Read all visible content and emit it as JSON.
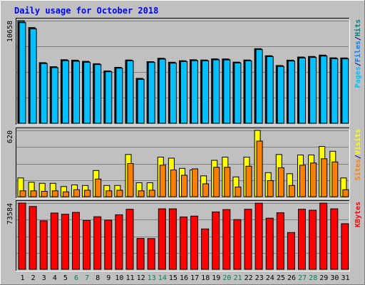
{
  "chart_data": {
    "type": "bar",
    "title": "Daily usage for October 2018",
    "categories": [
      "1",
      "2",
      "3",
      "4",
      "5",
      "6",
      "7",
      "8",
      "9",
      "10",
      "11",
      "12",
      "13",
      "14",
      "15",
      "16",
      "17",
      "18",
      "19",
      "20",
      "21",
      "22",
      "23",
      "24",
      "25",
      "26",
      "27",
      "28",
      "29",
      "30",
      "31"
    ],
    "weekend_days": [
      "6",
      "7",
      "13",
      "14",
      "20",
      "21",
      "27",
      "28"
    ],
    "panels": [
      {
        "id": "hits",
        "ymax_label": "10658",
        "ymax": 10658,
        "legend": [
          {
            "text": "Pages",
            "color": "#00c0ff"
          },
          {
            "text": "/",
            "color": "#000080"
          },
          {
            "text": "Files",
            "color": "#0080ff"
          },
          {
            "text": "/",
            "color": "#000080"
          },
          {
            "text": "Hits",
            "color": "#008080"
          }
        ],
        "series": [
          {
            "name": "Hits",
            "color": "#008080",
            "values": [
              10658,
              9950,
              6300,
              5880,
              6600,
              6560,
              6430,
              6190,
              5440,
              5810,
              6570,
              4660,
              6400,
              6760,
              6340,
              6500,
              6600,
              6570,
              6690,
              6680,
              6360,
              6570,
              7750,
              7020,
              6000,
              6560,
              6880,
              6940,
              7080,
              6800,
              6790
            ]
          },
          {
            "name": "Files",
            "color": "#0080ff",
            "values": [
              10500,
              9850,
              6250,
              5820,
              6540,
              6490,
              6380,
              6140,
              5390,
              5760,
              6520,
              4610,
              6360,
              6710,
              6290,
              6450,
              6550,
              6530,
              6640,
              6630,
              6310,
              6520,
              7700,
              6970,
              5950,
              6510,
              6830,
              6890,
              7030,
              6750,
              6740
            ]
          },
          {
            "name": "Pages",
            "color": "#00c0ff",
            "values": [
              10450,
              9800,
              6200,
              5780,
              6500,
              6440,
              6330,
              6100,
              5350,
              5720,
              6480,
              4560,
              6320,
              6660,
              6240,
              6400,
              6500,
              6480,
              6590,
              6580,
              6260,
              6480,
              7650,
              6920,
              5900,
              6460,
              6780,
              6840,
              6980,
              6700,
              6690
            ]
          }
        ]
      },
      {
        "id": "visits",
        "ymax_label": "620",
        "ymax": 620,
        "legend": [
          {
            "text": "Sites",
            "color": "#ff8000"
          },
          {
            "text": "/",
            "color": "#000080"
          },
          {
            "text": "Visits",
            "color": "#ffff00"
          }
        ],
        "series": [
          {
            "name": "Visits",
            "color": "#ffff00",
            "values": [
              175,
              135,
              125,
              125,
              95,
              110,
              105,
              245,
              105,
              105,
              395,
              130,
              130,
              370,
              360,
              265,
              250,
              195,
              340,
              370,
              185,
              370,
              620,
              225,
              395,
              215,
              390,
              390,
              470,
              425,
              175
            ]
          },
          {
            "name": "Sites",
            "color": "#ff8000",
            "values": [
              55,
              55,
              50,
              55,
              45,
              65,
              60,
              165,
              55,
              60,
              310,
              55,
              60,
              295,
              250,
              200,
              260,
              120,
              275,
              275,
              90,
              285,
              520,
              150,
              270,
              105,
              295,
              315,
              355,
              325,
              65
            ]
          }
        ]
      },
      {
        "id": "kbytes",
        "ymax_label": "73584",
        "ymax": 73584,
        "legend": [
          {
            "text": "KBytes",
            "color": "#ff0000"
          }
        ],
        "series": [
          {
            "name": "KBytes",
            "color": "#ff0000",
            "values": [
              73584,
              69790,
              53900,
              62500,
              61200,
              63200,
              54200,
              58400,
              54600,
              60600,
              66700,
              34300,
              34200,
              67200,
              67200,
              58200,
              59100,
              44900,
              63800,
              66400,
              55200,
              66700,
              73400,
              56800,
              62800,
              40900,
              66700,
              65700,
              73500,
              67200,
              50600
            ]
          }
        ]
      }
    ],
    "grid": true
  }
}
